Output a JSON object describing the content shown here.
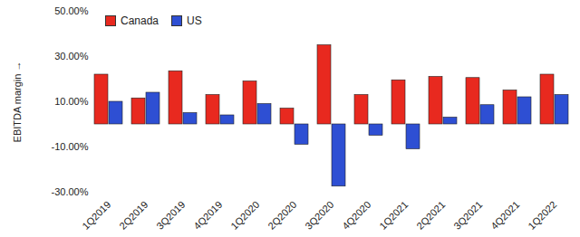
{
  "chart_data": {
    "type": "bar",
    "y_label": "EBITDA margin",
    "categories": [
      "1Q2019",
      "2Q2019",
      "3Q2019",
      "4Q2019",
      "1Q2020",
      "2Q2020",
      "3Q2020",
      "4Q2020",
      "1Q2021",
      "2Q2021",
      "3Q2021",
      "4Q2021",
      "1Q2022"
    ],
    "series": [
      {
        "name": "Canada",
        "color": "#e8291f",
        "values": [
          22,
          11.5,
          23.5,
          13,
          19,
          7,
          35,
          13,
          19.5,
          21,
          20.5,
          15,
          22
        ]
      },
      {
        "name": "US",
        "color": "#2e4fd3",
        "values": [
          10,
          14,
          5,
          4,
          9,
          -9,
          -27.5,
          -5,
          -11,
          3,
          8.5,
          12,
          13
        ]
      }
    ],
    "ylim": [
      -30,
      50
    ],
    "yticks": [
      {
        "value": -30,
        "label": "-30.00%"
      },
      {
        "value": -10,
        "label": "-10.00%"
      },
      {
        "value": 10,
        "label": "10.00%"
      },
      {
        "value": 30,
        "label": "30.00%"
      },
      {
        "value": 50,
        "label": "50.00%"
      }
    ],
    "grid": false,
    "legend": "top-left"
  }
}
